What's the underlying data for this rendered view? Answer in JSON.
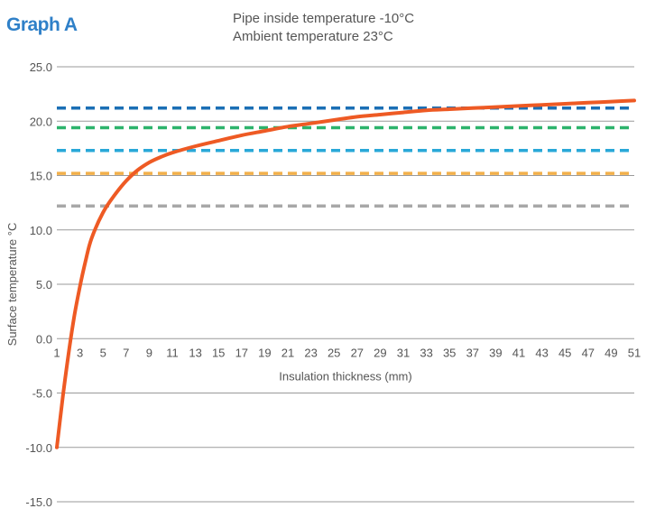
{
  "colors": {
    "title": "#2F80C8",
    "curve": "#EE5A24",
    "grid": "#9a9a9a",
    "text": "#555555"
  },
  "chart_data": {
    "type": "line",
    "title": "Graph A",
    "subtitle_lines": [
      "Pipe inside temperature -10°C",
      "Ambient temperature 23°C"
    ],
    "xlabel": "Insulation thickness (mm)",
    "ylabel": "Surface temperature °C",
    "xlim": [
      1,
      51
    ],
    "ylim": [
      -15,
      25
    ],
    "y_ticks": [
      25,
      20,
      15,
      10,
      5,
      0,
      -5,
      -10,
      -15
    ],
    "y_tick_labels": [
      "25.0",
      "20.0",
      "15.0",
      "10.0",
      "5.0",
      "0.0",
      "-5.0",
      "-10.0",
      "-15.0"
    ],
    "x_ticks": [
      1,
      3,
      5,
      7,
      9,
      11,
      13,
      15,
      17,
      19,
      21,
      23,
      25,
      27,
      29,
      31,
      33,
      35,
      37,
      39,
      41,
      43,
      45,
      47,
      49,
      51
    ],
    "grid": true,
    "series": [
      {
        "color": "#EE5A24",
        "x": [
          1,
          1.5,
          2,
          2.5,
          3,
          3.5,
          4,
          5,
          6,
          7,
          8,
          9,
          10,
          11,
          13,
          15,
          17,
          19,
          21,
          23,
          25,
          27,
          29,
          31,
          33,
          35,
          37,
          39,
          41,
          43,
          45,
          47,
          49,
          51
        ],
        "y": [
          -10,
          -5.5,
          -1.5,
          2,
          4.8,
          7.2,
          9.2,
          11.6,
          13.2,
          14.5,
          15.5,
          16.2,
          16.7,
          17.1,
          17.7,
          18.2,
          18.7,
          19.1,
          19.5,
          19.8,
          20.1,
          20.4,
          20.6,
          20.8,
          21.0,
          21.1,
          21.2,
          21.3,
          21.4,
          21.5,
          21.6,
          21.7,
          21.8,
          21.9
        ]
      }
    ],
    "reference_lines": [
      {
        "y": 21.2,
        "color": "#1B6FB5",
        "style": "dashed"
      },
      {
        "y": 19.4,
        "color": "#2DB36C",
        "style": "dashed"
      },
      {
        "y": 17.3,
        "color": "#29A8D8",
        "style": "dashed"
      },
      {
        "y": 15.2,
        "color": "#F2B04A",
        "style": "dashed"
      },
      {
        "y": 12.2,
        "color": "#A8A8A8",
        "style": "dashed"
      }
    ]
  }
}
